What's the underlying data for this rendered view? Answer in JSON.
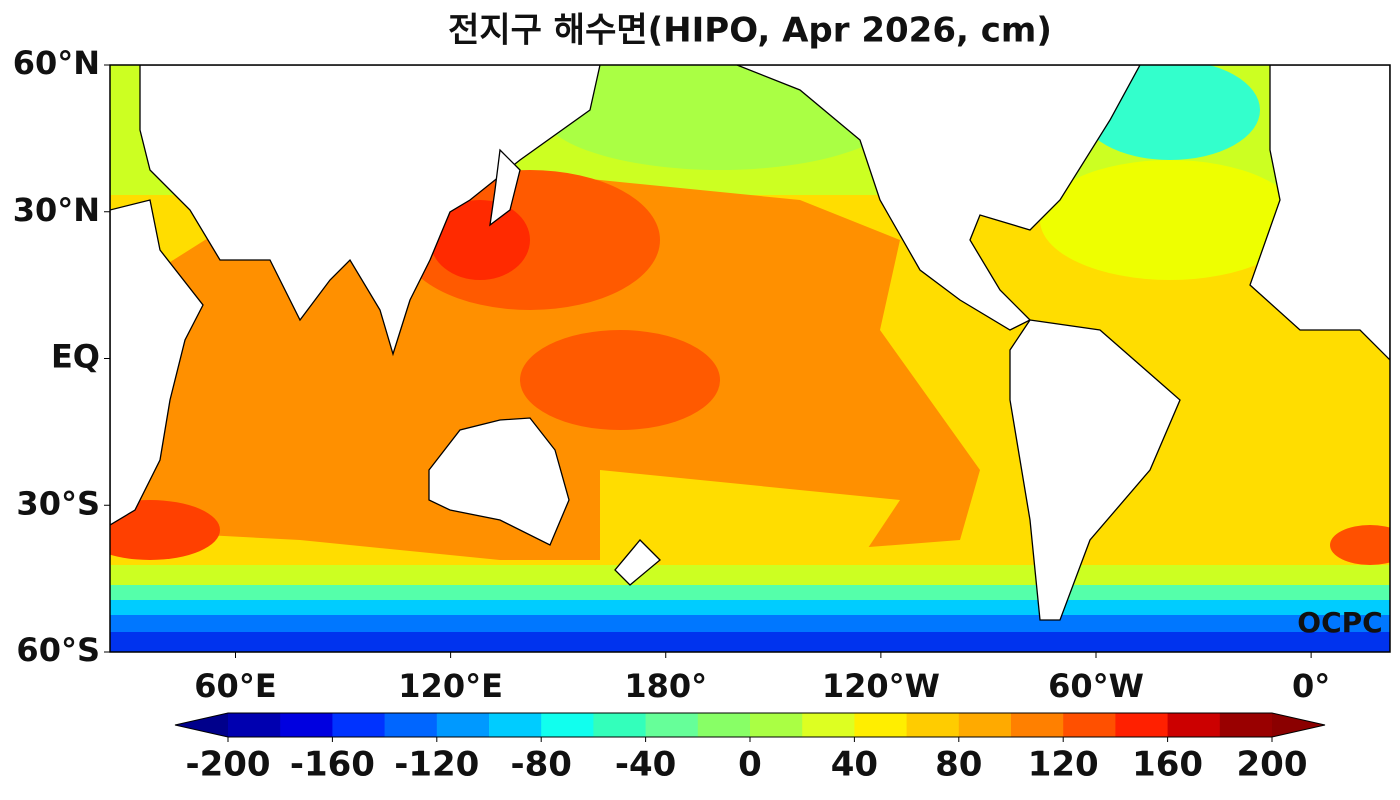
{
  "title": "전지구 해수면(HIPO, Apr 2026, cm)",
  "map": {
    "lonlim": [
      25,
      382
    ],
    "latlim": [
      -60,
      60
    ],
    "lat_ticks": [
      {
        "value": 60,
        "label": "60°N"
      },
      {
        "value": 30,
        "label": "30°N"
      },
      {
        "value": 0,
        "label": "EQ"
      },
      {
        "value": -30,
        "label": "30°S"
      },
      {
        "value": -60,
        "label": "60°S"
      }
    ],
    "lon_ticks": [
      {
        "value": 60,
        "label": "60°E"
      },
      {
        "value": 120,
        "label": "120°E"
      },
      {
        "value": 180,
        "label": "180°"
      },
      {
        "value": 240,
        "label": "120°W"
      },
      {
        "value": 300,
        "label": "60°W"
      },
      {
        "value": 360,
        "label": "0°"
      }
    ],
    "watermark": "OCPC"
  },
  "colorbar": {
    "range": [
      -200,
      200
    ],
    "ticks": [
      -200,
      -160,
      -120,
      -80,
      -40,
      0,
      40,
      80,
      120,
      160,
      200
    ],
    "colors": [
      "#0000b0",
      "#0000e0",
      "#0033ff",
      "#0066ff",
      "#0099ff",
      "#00ccff",
      "#11ffee",
      "#33ffbb",
      "#66ff99",
      "#88ff66",
      "#aaff44",
      "#ddff22",
      "#ffee00",
      "#ffcc00",
      "#ffaa00",
      "#ff8000",
      "#ff5000",
      "#ff2000",
      "#cc0000",
      "#990000"
    ],
    "under_color": "#00008b",
    "over_color": "#8b0000"
  }
}
